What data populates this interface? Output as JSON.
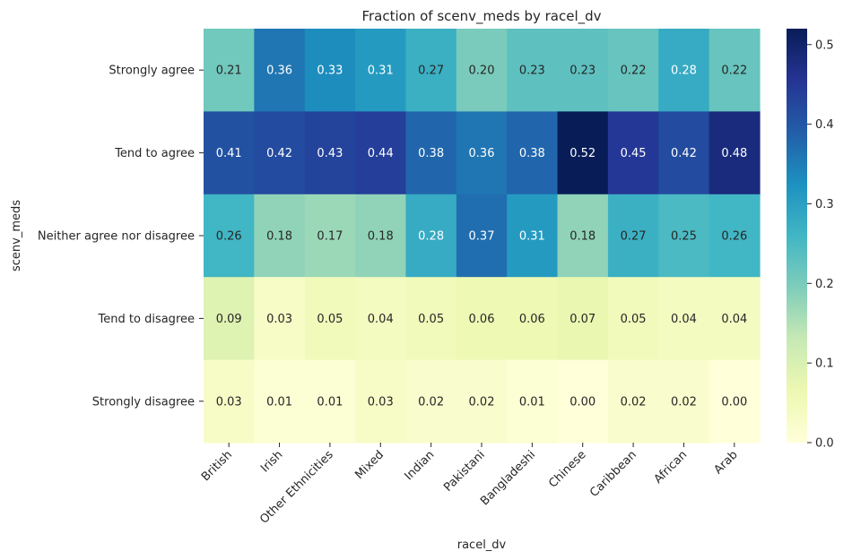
{
  "chart_data": {
    "type": "heatmap",
    "title": "Fraction of scenv_meds by racel_dv",
    "xlabel": "racel_dv",
    "ylabel": "scenv_meds",
    "x_categories": [
      "British",
      "Irish",
      "Other Ethnicities",
      "Mixed",
      "Indian",
      "Pakistani",
      "Bangladeshi",
      "Chinese",
      "Caribbean",
      "African",
      "Arab"
    ],
    "y_categories": [
      "Strongly agree",
      "Tend to agree",
      "Neither agree nor disagree",
      "Tend to disagree",
      "Strongly disagree"
    ],
    "values": [
      [
        0.21,
        0.36,
        0.33,
        0.31,
        0.27,
        0.2,
        0.23,
        0.23,
        0.22,
        0.28,
        0.22
      ],
      [
        0.41,
        0.42,
        0.43,
        0.44,
        0.38,
        0.36,
        0.38,
        0.52,
        0.45,
        0.42,
        0.48
      ],
      [
        0.26,
        0.18,
        0.17,
        0.18,
        0.28,
        0.37,
        0.31,
        0.18,
        0.27,
        0.25,
        0.26
      ],
      [
        0.09,
        0.03,
        0.05,
        0.04,
        0.05,
        0.06,
        0.06,
        0.07,
        0.05,
        0.04,
        0.04
      ],
      [
        0.03,
        0.01,
        0.01,
        0.03,
        0.02,
        0.02,
        0.01,
        0.0,
        0.02,
        0.02,
        0.0
      ]
    ],
    "annotation_format": "0.00",
    "colormap": "YlGnBu",
    "colormap_stops": [
      "#ffffd9",
      "#edf8b1",
      "#c7e9b4",
      "#7fcdbb",
      "#41b6c4",
      "#1d91c0",
      "#225ea8",
      "#253494",
      "#081d58"
    ],
    "vmin": 0.0,
    "vmax": 0.52,
    "colorbar_ticks": [
      "0.0",
      "0.1",
      "0.2",
      "0.3",
      "0.4",
      "0.5"
    ],
    "colorbar_tick_values": [
      0.0,
      0.1,
      0.2,
      0.3,
      0.4,
      0.5
    ],
    "x_tick_rotation": 45,
    "grid": false
  }
}
